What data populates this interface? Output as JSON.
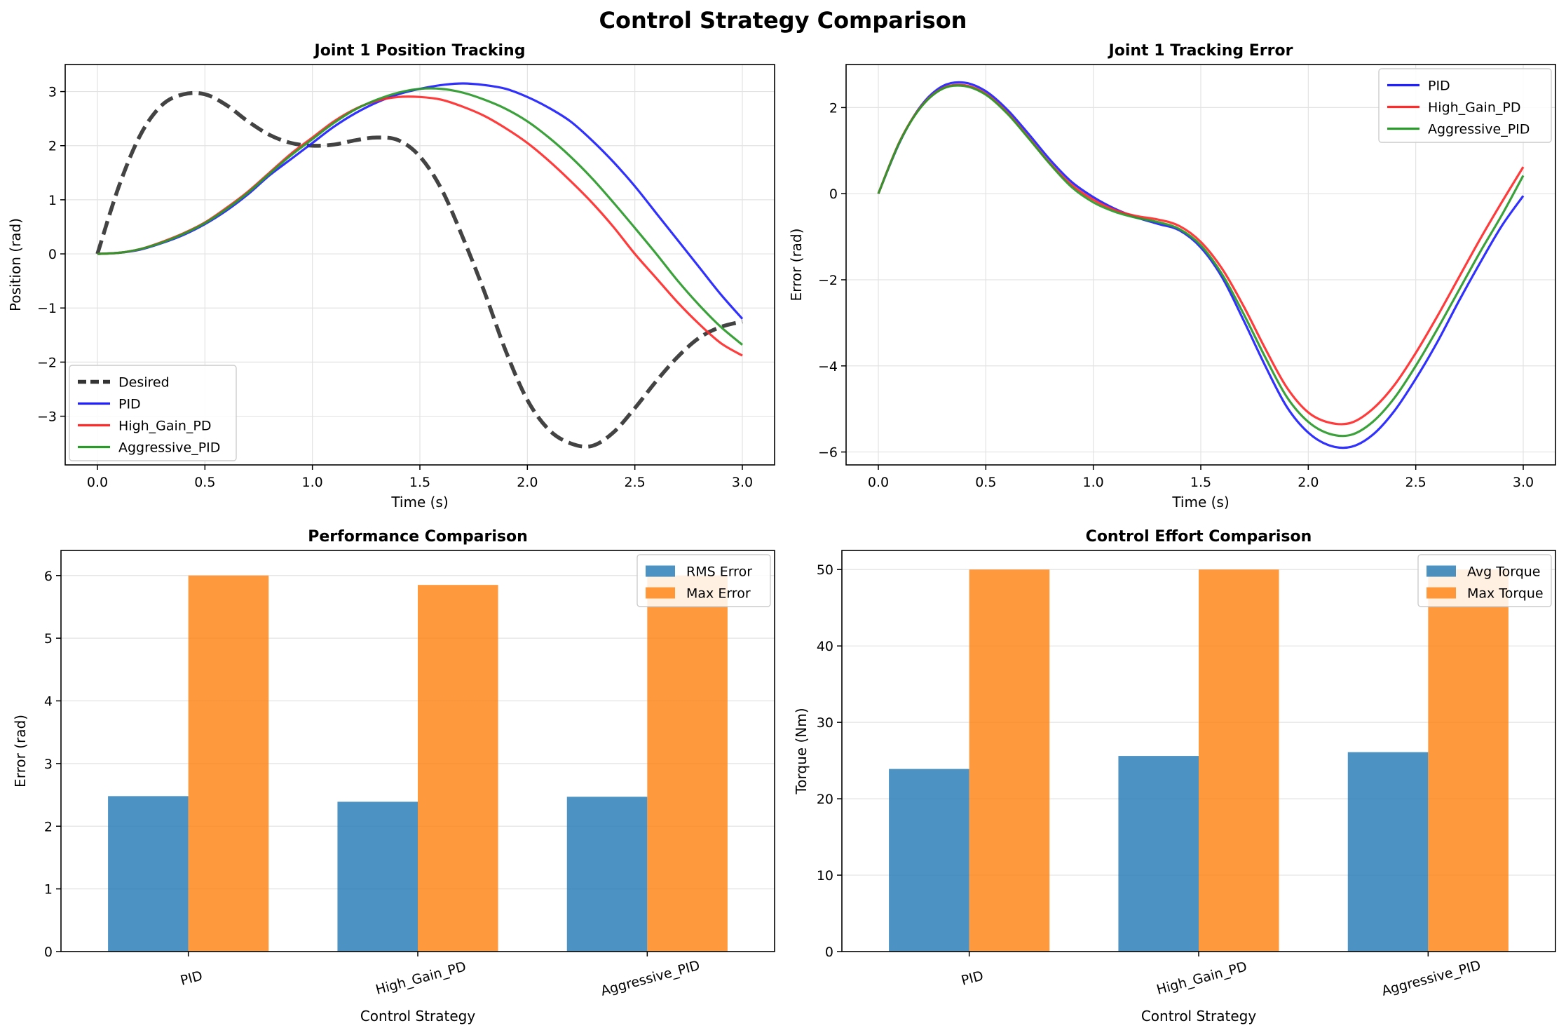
{
  "figure_title": "Control Strategy Comparison",
  "chart_data": [
    {
      "type": "line",
      "title": "Joint 1 Position Tracking",
      "xlabel": "Time (s)",
      "ylabel": "Position (rad)",
      "xlim": [
        -0.15,
        3.15
      ],
      "ylim": [
        -3.9,
        3.5
      ],
      "xticks": [
        0.0,
        0.5,
        1.0,
        1.5,
        2.0,
        2.5,
        3.0
      ],
      "yticks": [
        -3,
        -2,
        -1,
        0,
        1,
        2,
        3
      ],
      "grid": true,
      "legend_position": "lower-left",
      "x": [
        0.0,
        0.1,
        0.2,
        0.3,
        0.4,
        0.5,
        0.6,
        0.7,
        0.8,
        0.9,
        1.0,
        1.1,
        1.2,
        1.3,
        1.4,
        1.5,
        1.6,
        1.7,
        1.8,
        1.9,
        2.0,
        2.1,
        2.2,
        2.3,
        2.4,
        2.5,
        2.6,
        2.7,
        2.8,
        2.9,
        3.0
      ],
      "series": [
        {
          "name": "Desired",
          "color": "#333333",
          "dashed": true,
          "values": [
            0.0,
            1.25,
            2.2,
            2.75,
            2.95,
            2.95,
            2.75,
            2.45,
            2.2,
            2.05,
            2.0,
            2.02,
            2.1,
            2.15,
            2.1,
            1.8,
            1.2,
            0.3,
            -0.7,
            -1.8,
            -2.7,
            -3.25,
            -3.5,
            -3.55,
            -3.3,
            -2.85,
            -2.35,
            -1.9,
            -1.55,
            -1.35,
            -1.25
          ]
        },
        {
          "name": "PID",
          "color": "#1f1fff",
          "values": [
            0.0,
            0.02,
            0.08,
            0.2,
            0.35,
            0.55,
            0.8,
            1.1,
            1.45,
            1.75,
            2.05,
            2.35,
            2.6,
            2.8,
            2.95,
            3.05,
            3.12,
            3.15,
            3.12,
            3.05,
            2.9,
            2.7,
            2.45,
            2.1,
            1.7,
            1.25,
            0.75,
            0.25,
            -0.25,
            -0.75,
            -1.2
          ]
        },
        {
          "name": "High_Gain_PD",
          "color": "#ff2a2a",
          "values": [
            0.0,
            0.02,
            0.09,
            0.22,
            0.38,
            0.58,
            0.85,
            1.15,
            1.5,
            1.85,
            2.15,
            2.45,
            2.68,
            2.83,
            2.9,
            2.9,
            2.85,
            2.72,
            2.55,
            2.32,
            2.05,
            1.72,
            1.35,
            0.95,
            0.5,
            0.0,
            -0.45,
            -0.9,
            -1.3,
            -1.65,
            -1.88
          ]
        },
        {
          "name": "Aggressive_PID",
          "color": "#2a9a2a",
          "values": [
            0.0,
            0.02,
            0.09,
            0.21,
            0.37,
            0.57,
            0.83,
            1.13,
            1.48,
            1.82,
            2.12,
            2.42,
            2.67,
            2.85,
            2.98,
            3.05,
            3.05,
            2.98,
            2.85,
            2.68,
            2.45,
            2.15,
            1.8,
            1.4,
            0.95,
            0.48,
            0.0,
            -0.5,
            -0.95,
            -1.35,
            -1.68
          ]
        }
      ]
    },
    {
      "type": "line",
      "title": "Joint 1 Tracking Error",
      "xlabel": "Time (s)",
      "ylabel": "Error (rad)",
      "xlim": [
        -0.15,
        3.15
      ],
      "ylim": [
        -6.3,
        3.0
      ],
      "xticks": [
        0.0,
        0.5,
        1.0,
        1.5,
        2.0,
        2.5,
        3.0
      ],
      "yticks": [
        -6,
        -4,
        -2,
        0,
        2
      ],
      "grid": true,
      "legend_position": "upper-right",
      "x": [
        0.0,
        0.1,
        0.2,
        0.3,
        0.4,
        0.5,
        0.6,
        0.7,
        0.8,
        0.9,
        1.0,
        1.1,
        1.2,
        1.3,
        1.4,
        1.5,
        1.6,
        1.7,
        1.8,
        1.9,
        2.0,
        2.1,
        2.2,
        2.3,
        2.4,
        2.5,
        2.6,
        2.7,
        2.8,
        2.9,
        3.0
      ],
      "series": [
        {
          "name": "PID",
          "color": "#1f1fff",
          "values": [
            0.0,
            1.2,
            2.05,
            2.5,
            2.58,
            2.38,
            1.95,
            1.38,
            0.78,
            0.27,
            -0.08,
            -0.35,
            -0.55,
            -0.7,
            -0.85,
            -1.25,
            -1.95,
            -2.95,
            -4.0,
            -4.95,
            -5.55,
            -5.85,
            -5.88,
            -5.6,
            -5.05,
            -4.3,
            -3.45,
            -2.5,
            -1.6,
            -0.75,
            -0.05
          ]
        },
        {
          "name": "High_Gain_PD",
          "color": "#ff2a2a",
          "values": [
            0.0,
            1.22,
            2.03,
            2.45,
            2.52,
            2.32,
            1.88,
            1.3,
            0.7,
            0.2,
            -0.14,
            -0.38,
            -0.52,
            -0.6,
            -0.75,
            -1.12,
            -1.75,
            -2.62,
            -3.6,
            -4.5,
            -5.08,
            -5.32,
            -5.32,
            -5.0,
            -4.45,
            -3.7,
            -2.85,
            -1.95,
            -1.05,
            -0.2,
            0.62
          ]
        },
        {
          "name": "Aggressive_PID",
          "color": "#2a9a2a",
          "values": [
            0.0,
            1.21,
            2.02,
            2.44,
            2.5,
            2.3,
            1.86,
            1.28,
            0.68,
            0.15,
            -0.2,
            -0.42,
            -0.56,
            -0.66,
            -0.82,
            -1.2,
            -1.88,
            -2.8,
            -3.8,
            -4.72,
            -5.3,
            -5.58,
            -5.6,
            -5.3,
            -4.75,
            -4.0,
            -3.15,
            -2.25,
            -1.35,
            -0.5,
            0.42
          ]
        }
      ]
    },
    {
      "type": "bar",
      "title": "Performance Comparison",
      "xlabel": "Control Strategy",
      "ylabel": "Error (rad)",
      "ylim": [
        0,
        6.4
      ],
      "yticks": [
        0,
        1,
        2,
        3,
        4,
        5,
        6
      ],
      "grid": true,
      "legend_position": "upper-right",
      "categories": [
        "PID",
        "High_Gain_PD",
        "Aggressive_PID"
      ],
      "series": [
        {
          "name": "RMS Error",
          "color": "#1f77b4",
          "values": [
            2.48,
            2.39,
            2.47
          ]
        },
        {
          "name": "Max Error",
          "color": "#ff7f0e",
          "values": [
            6.0,
            5.85,
            6.0
          ]
        }
      ]
    },
    {
      "type": "bar",
      "title": "Control Effort Comparison",
      "xlabel": "Control Strategy",
      "ylabel": "Torque (Nm)",
      "ylim": [
        0,
        52.5
      ],
      "yticks": [
        0,
        10,
        20,
        30,
        40,
        50
      ],
      "grid": true,
      "legend_position": "upper-right",
      "categories": [
        "PID",
        "High_Gain_PD",
        "Aggressive_PID"
      ],
      "series": [
        {
          "name": "Avg Torque",
          "color": "#1f77b4",
          "values": [
            23.9,
            25.6,
            26.1
          ]
        },
        {
          "name": "Max Torque",
          "color": "#ff7f0e",
          "values": [
            50,
            50,
            50
          ]
        }
      ]
    }
  ]
}
